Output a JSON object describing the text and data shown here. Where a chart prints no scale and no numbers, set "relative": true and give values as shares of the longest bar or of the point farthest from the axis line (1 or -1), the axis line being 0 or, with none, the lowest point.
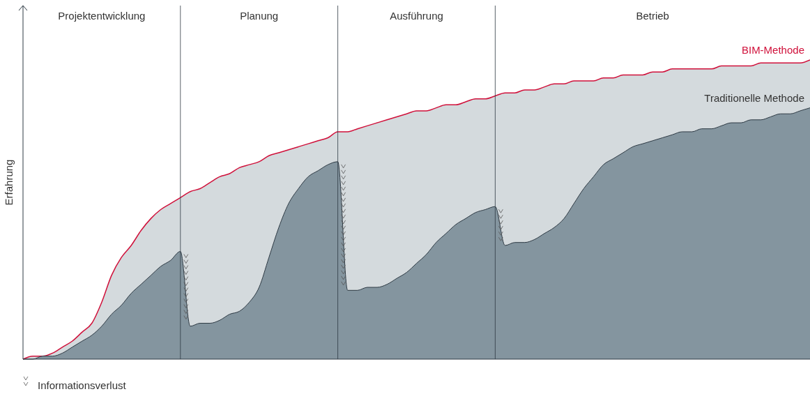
{
  "chart_data": {
    "type": "area",
    "relative": true,
    "ylabel": "Erfahrung",
    "grid": "x",
    "annotations": [
      "Projektentwicklung",
      "Planung",
      "Ausführung",
      "Betrieb",
      "Informationsverlust"
    ],
    "categories": [
      null,
      null,
      null,
      null,
      null,
      null,
      null,
      null,
      null,
      null,
      null,
      null,
      null,
      null,
      null,
      null,
      null,
      null,
      null,
      null,
      null,
      null,
      null,
      null,
      null,
      null,
      null,
      null,
      null,
      null,
      null,
      null,
      null,
      null,
      null,
      null,
      null,
      null,
      null,
      null,
      null,
      null,
      null,
      null,
      null,
      null,
      null,
      null,
      null,
      null,
      null,
      null,
      null,
      null,
      null,
      null,
      null,
      null,
      null,
      null,
      null,
      null,
      null,
      null,
      null,
      null,
      null,
      null,
      null,
      null,
      null,
      null,
      null,
      null,
      null,
      null,
      null,
      null,
      null,
      null,
      null
    ],
    "series": [
      {
        "name": "BIM-Methode",
        "color": "#d0103a",
        "values": [
          0,
          0.01,
          0.01,
          0.02,
          0.04,
          0.06,
          0.09,
          0.12,
          0.19,
          0.28,
          0.34,
          0.38,
          0.43,
          0.47,
          0.5,
          0.52,
          0.54,
          0.56,
          0.57,
          0.59,
          0.61,
          0.62,
          0.64,
          0.65,
          0.66,
          0.68,
          0.69,
          0.7,
          0.71,
          0.72,
          0.73,
          0.74,
          0.76,
          0.76,
          0.77,
          0.78,
          0.79,
          0.8,
          0.81,
          0.82,
          0.83,
          0.83,
          0.84,
          0.85,
          0.85,
          0.86,
          0.87,
          0.87,
          0.88,
          0.89,
          0.89,
          0.9,
          0.9,
          0.91,
          0.92,
          0.92,
          0.93,
          0.93,
          0.93,
          0.94,
          0.94,
          0.95,
          0.95,
          0.95,
          0.96,
          0.96,
          0.97,
          0.97,
          0.97,
          0.97,
          0.97,
          0.98,
          0.98,
          0.98,
          0.98,
          0.99,
          0.99,
          0.99,
          0.99,
          0.99,
          1
        ]
      },
      {
        "name": "Traditionelle Methode",
        "color": "#84959f",
        "values": [
          0,
          0,
          0.01,
          0.01,
          0.02,
          0.04,
          0.06,
          0.08,
          0.11,
          0.15,
          0.18,
          0.22,
          0.25,
          0.28,
          0.31,
          0.33,
          0.36,
          0.11,
          0.12,
          0.12,
          0.13,
          0.15,
          0.16,
          0.19,
          0.24,
          0.34,
          0.44,
          0.52,
          0.57,
          0.61,
          0.63,
          0.65,
          0.66,
          0.23,
          0.23,
          0.24,
          0.24,
          0.25,
          0.27,
          0.29,
          0.32,
          0.35,
          0.39,
          0.42,
          0.45,
          0.47,
          0.49,
          0.5,
          0.51,
          0.38,
          0.39,
          0.39,
          0.4,
          0.42,
          0.44,
          0.47,
          0.52,
          0.57,
          0.61,
          0.65,
          0.67,
          0.69,
          0.71,
          0.72,
          0.73,
          0.74,
          0.75,
          0.76,
          0.76,
          0.77,
          0.77,
          0.78,
          0.79,
          0.79,
          0.8,
          0.8,
          0.81,
          0.82,
          0.82,
          0.83,
          0.84
        ]
      }
    ]
  }
}
